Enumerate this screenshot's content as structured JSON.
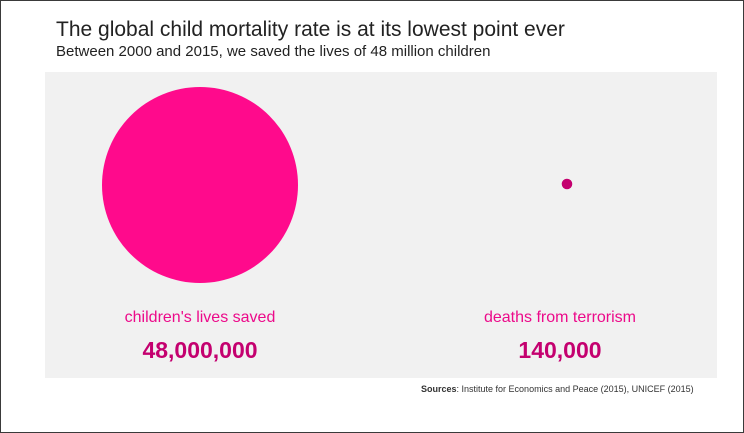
{
  "title": "The global child mortality rate is at its lowest point ever",
  "subtitle": "Between 2000 and 2015, we saved the lives of 48 million children",
  "chart_data": {
    "type": "bubble",
    "categories": [
      "children's lives saved",
      "deaths from terrorism"
    ],
    "values": [
      48000000,
      140000
    ],
    "value_labels": [
      "48,000,000",
      "140,000"
    ],
    "colors": [
      "#ff0a8c",
      "#c4006f"
    ]
  },
  "sources": {
    "prefix": "Sources",
    "text": ": Institute for Economics and Peace (2015), UNICEF (2015)"
  },
  "colors": {
    "accent": "#ec0a8a",
    "value_text": "#c4006f",
    "panel_background": "#f1f1f1"
  }
}
